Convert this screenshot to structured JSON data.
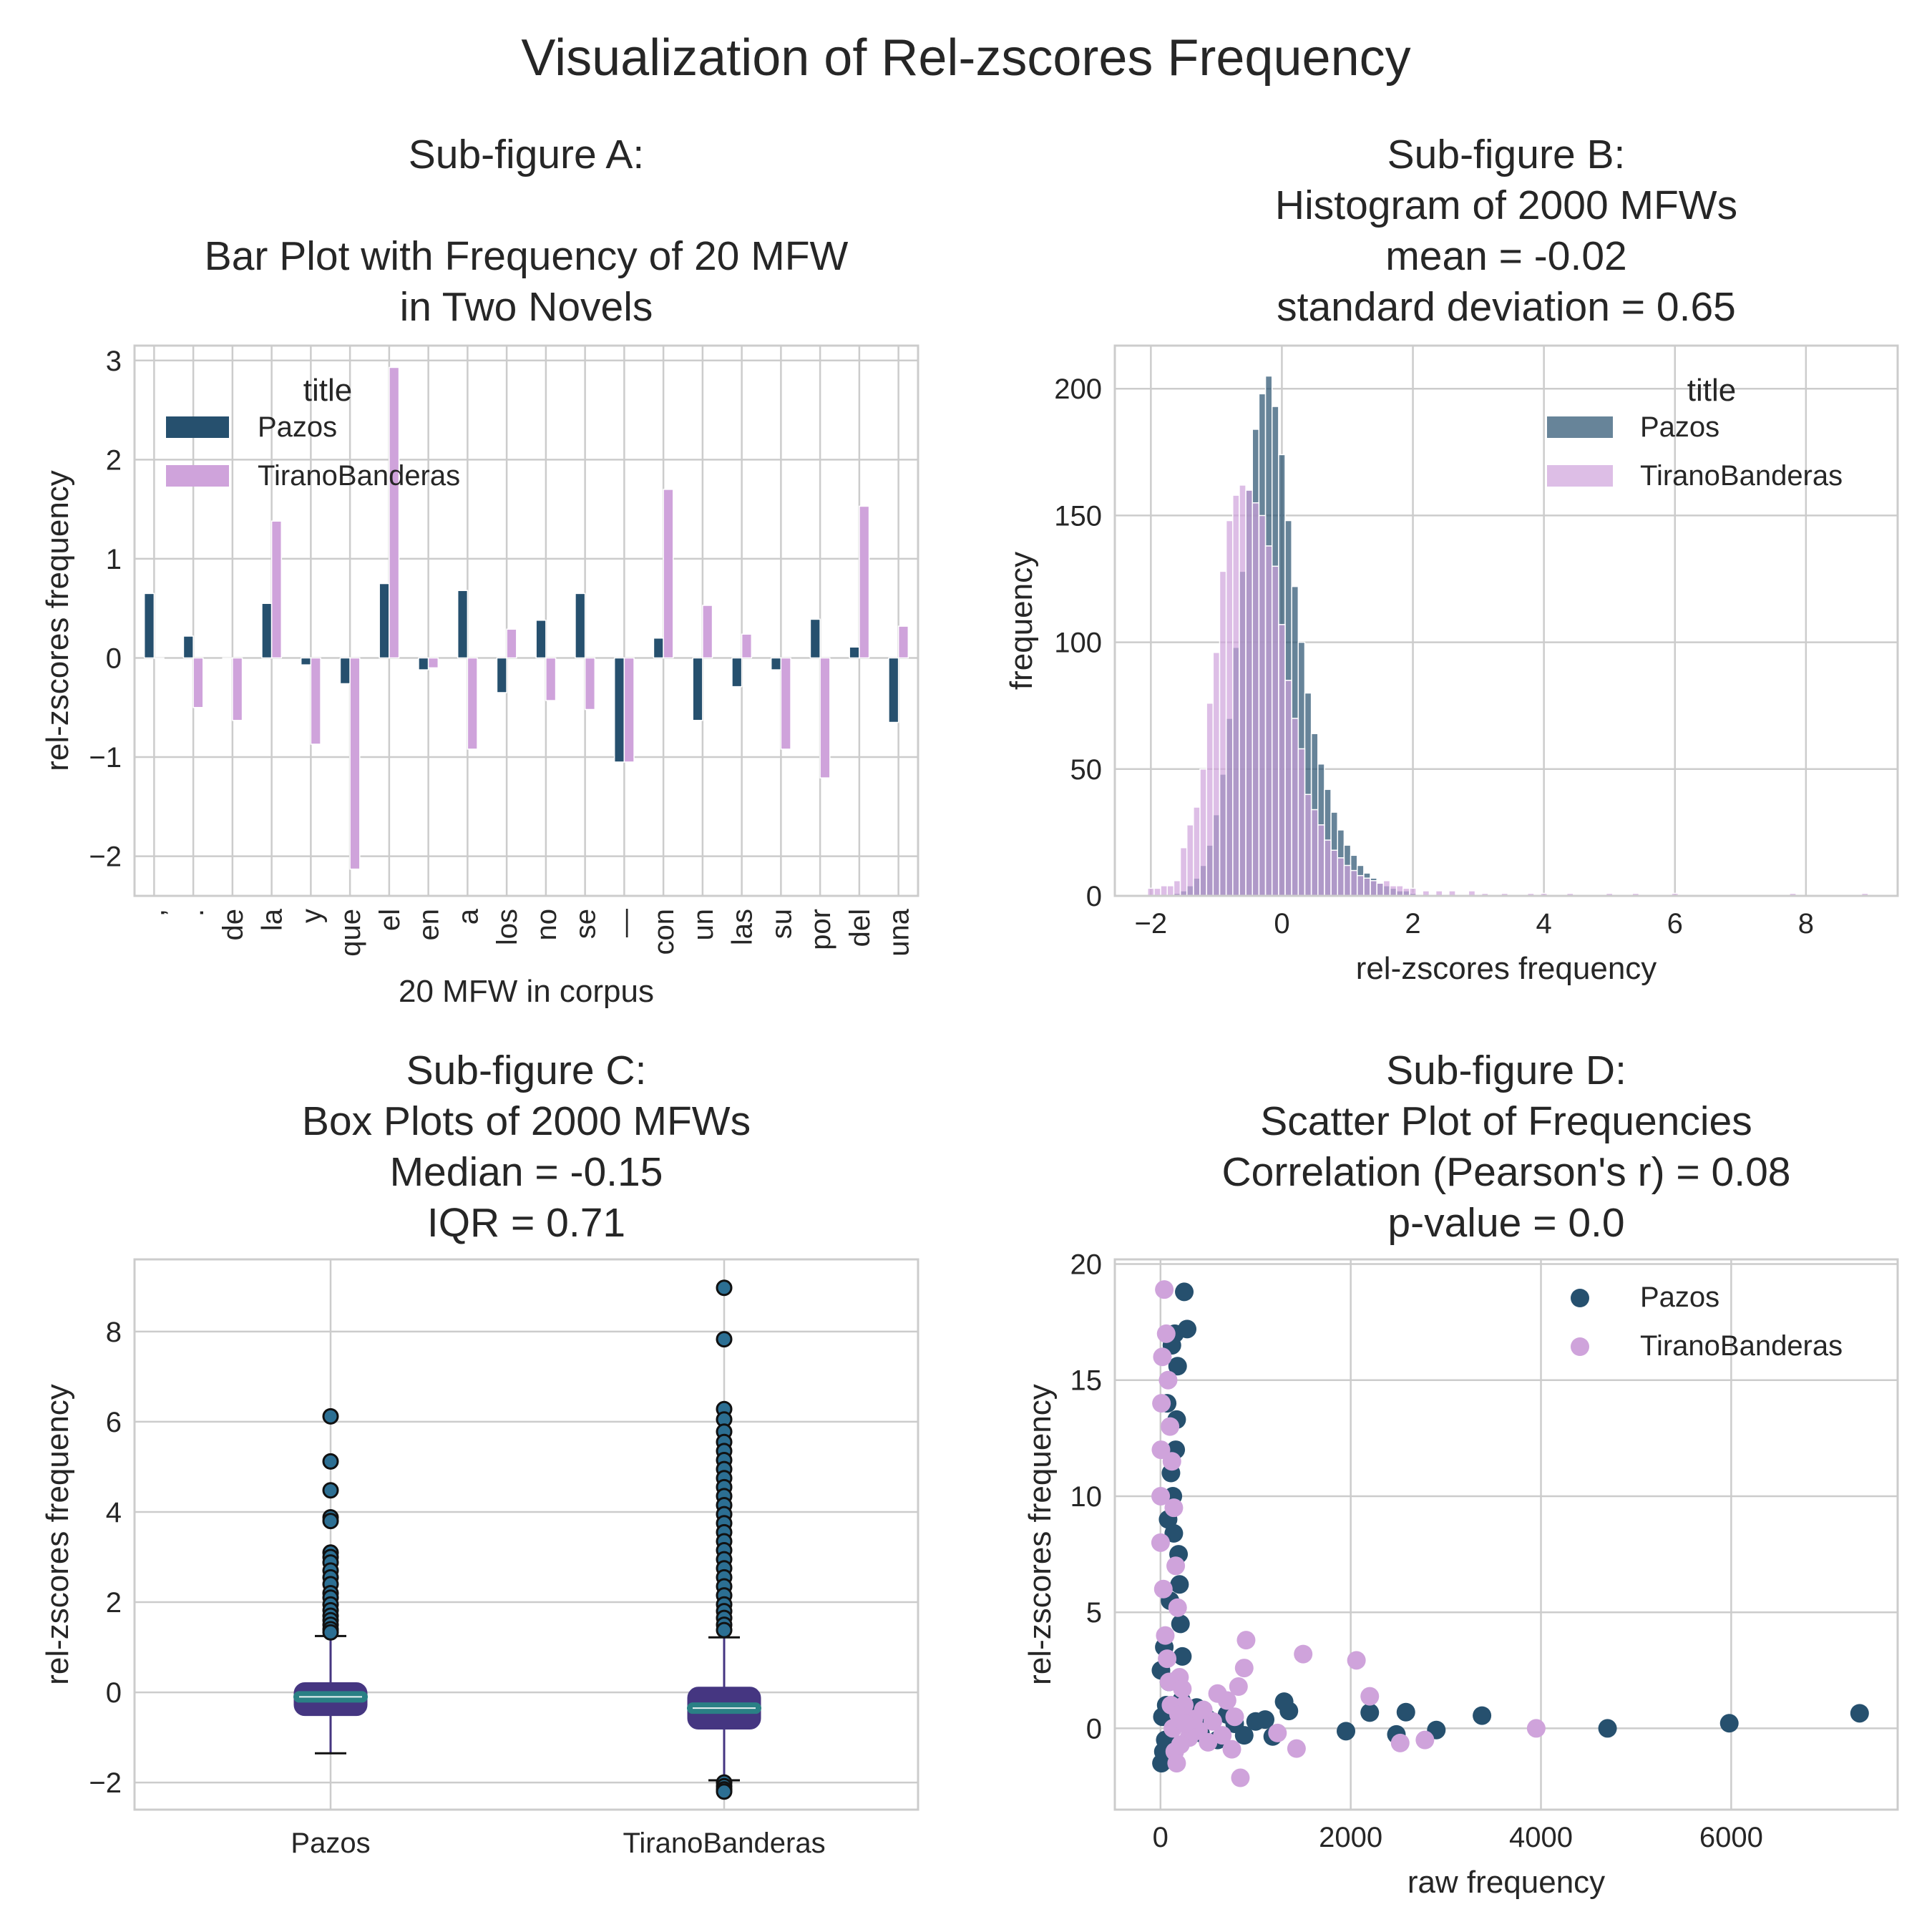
{
  "figure": {
    "title": "Visualization of Rel-zscores Frequency"
  },
  "colors": {
    "pazos": "#26506e",
    "tirano": "#cfa3db",
    "box_face": "#453681",
    "box_median": "#2a8085",
    "grid": "#cccccc"
  },
  "chart_data": [
    {
      "id": "A",
      "type": "bar",
      "title_lines": [
        "Sub-figure A:",
        "",
        "Bar Plot with Frequency of 20 MFW",
        "in Two Novels"
      ],
      "xlabel": "20 MFW in corpus",
      "ylabel": "rel-zscores frequency",
      "ylim": [
        -2.4,
        3.15
      ],
      "yticks": [
        "3",
        "2",
        "1",
        "0",
        "−1",
        "−2"
      ],
      "ytick_values": [
        3,
        2,
        1,
        0,
        -1,
        -2
      ],
      "legend": {
        "title": "title",
        "placement": "upper-left"
      },
      "categories": [
        ",",
        ".",
        "de",
        "la",
        "y",
        "que",
        "el",
        "en",
        "a",
        "los",
        "no",
        "se",
        "—",
        "con",
        "un",
        "las",
        "su",
        "por",
        "del",
        "una"
      ],
      "series": [
        {
          "name": "Pazos",
          "values": [
            0.65,
            0.22,
            0.0,
            0.55,
            -0.07,
            -0.26,
            0.75,
            -0.12,
            0.68,
            -0.35,
            0.38,
            0.65,
            -1.05,
            0.2,
            -0.63,
            -0.29,
            -0.12,
            0.39,
            0.11,
            -0.65
          ]
        },
        {
          "name": "TiranoBanderas",
          "values": [
            0.0,
            -0.5,
            -0.63,
            1.38,
            -0.87,
            -2.13,
            2.93,
            -0.1,
            -0.92,
            0.29,
            -0.43,
            -0.52,
            -1.05,
            1.7,
            0.53,
            0.24,
            -0.92,
            -1.21,
            1.53,
            0.32
          ]
        }
      ]
    },
    {
      "id": "B",
      "type": "histogram",
      "title_lines": [
        "Sub-figure B:",
        "Histogram of 2000 MFWs",
        "mean =  -0.02",
        "standard deviation = 0.65"
      ],
      "xlabel": "rel-zscores frequency",
      "ylabel": "frequency",
      "xlim": [
        -2.55,
        9.4
      ],
      "ylim": [
        0,
        217
      ],
      "xticks": [
        "−2",
        "0",
        "2",
        "4",
        "6",
        "8"
      ],
      "xtick_values": [
        -2,
        0,
        2,
        4,
        6,
        8
      ],
      "yticks": [
        "200",
        "150",
        "100",
        "50",
        "0"
      ],
      "ytick_values": [
        200,
        150,
        100,
        50,
        0
      ],
      "legend": {
        "title": "title",
        "placement": "upper-right"
      },
      "series": [
        {
          "name": "Pazos",
          "x": [
            -1.6,
            -1.5,
            -1.4,
            -1.3,
            -1.2,
            -1.1,
            -1.0,
            -0.9,
            -0.8,
            -0.7,
            -0.6,
            -0.5,
            -0.4,
            -0.3,
            -0.2,
            -0.1,
            0.0,
            0.1,
            0.2,
            0.3,
            0.4,
            0.5,
            0.6,
            0.7,
            0.8,
            0.9,
            1.0,
            1.1,
            1.2,
            1.3,
            1.4,
            1.5,
            1.6,
            1.7,
            1.8,
            1.9,
            2.0
          ],
          "values": [
            1,
            2,
            4,
            7,
            12,
            20,
            32,
            48,
            70,
            98,
            128,
            160,
            184,
            198,
            205,
            193,
            174,
            148,
            122,
            100,
            80,
            64,
            52,
            42,
            33,
            26,
            20,
            16,
            12,
            9,
            7,
            5,
            4,
            3,
            2,
            2,
            1
          ]
        },
        {
          "name": "TiranoBanderas",
          "x": [
            -2.0,
            -1.9,
            -1.8,
            -1.7,
            -1.6,
            -1.5,
            -1.4,
            -1.3,
            -1.2,
            -1.1,
            -1.0,
            -0.9,
            -0.8,
            -0.7,
            -0.6,
            -0.5,
            -0.4,
            -0.3,
            -0.2,
            -0.1,
            0.0,
            0.1,
            0.2,
            0.3,
            0.4,
            0.5,
            0.6,
            0.7,
            0.8,
            0.9,
            1.0,
            1.1,
            1.2,
            1.3,
            1.4,
            1.5,
            1.6,
            1.7,
            1.8,
            1.9,
            2.0,
            2.2,
            2.4,
            2.6,
            2.9,
            3.1,
            3.4,
            3.8,
            4.0,
            4.4,
            5.0,
            5.4,
            6.0,
            7.8,
            8.9
          ],
          "values": [
            3,
            3,
            4,
            4,
            6,
            19,
            28,
            35,
            50,
            76,
            96,
            128,
            148,
            158,
            162,
            160,
            155,
            150,
            138,
            130,
            107,
            85,
            70,
            58,
            40,
            34,
            28,
            22,
            18,
            15,
            12,
            10,
            8,
            7,
            6,
            5,
            6,
            4,
            4,
            3,
            3,
            2,
            2,
            2,
            2,
            1,
            1,
            1,
            1,
            1,
            1,
            1,
            1,
            1,
            1
          ]
        }
      ]
    },
    {
      "id": "C",
      "type": "box",
      "title_lines": [
        "Sub-figure C:",
        "Box Plots of 2000 MFWs",
        "Median =  -0.15",
        "IQR = 0.71"
      ],
      "ylabel": "rel-zscores frequency",
      "ylim": [
        -2.6,
        9.6
      ],
      "yticks": [
        "8",
        "6",
        "4",
        "2",
        "0",
        "−2"
      ],
      "ytick_values": [
        8,
        6,
        4,
        2,
        0,
        -2
      ],
      "categories": [
        "Pazos",
        "TiranoBanderas"
      ],
      "boxes": [
        {
          "q1": -0.5,
          "median": -0.1,
          "q3": 0.2,
          "whisker_low": -1.35,
          "whisker_high": 1.25,
          "outliers": [
            6.12,
            5.12,
            4.48,
            3.88,
            3.8,
            3.1,
            3.0,
            2.88,
            2.7,
            2.55,
            2.4,
            2.2,
            2.1,
            1.95,
            1.82,
            1.7,
            1.6,
            1.5,
            1.4,
            1.33
          ]
        },
        {
          "q1": -0.8,
          "median": -0.35,
          "q3": 0.1,
          "whisker_low": -1.95,
          "whisker_high": 1.22,
          "outliers": [
            8.97,
            7.83,
            6.28,
            6.05,
            5.78,
            5.55,
            5.35,
            5.15,
            4.95,
            4.75,
            4.55,
            4.35,
            4.15,
            3.95,
            3.75,
            3.55,
            3.35,
            3.15,
            2.95,
            2.75,
            2.55,
            2.35,
            2.15,
            1.95,
            1.8,
            1.65,
            1.5,
            1.38,
            -2.0,
            -2.08,
            -2.15,
            -2.2
          ]
        }
      ]
    },
    {
      "id": "D",
      "type": "scatter",
      "title_lines": [
        "Sub-figure D:",
        "Scatter Plot of Frequencies",
        "Correlation (Pearson's r) =  0.08",
        "p-value = 0.0"
      ],
      "xlabel": "raw frequency",
      "ylabel": "rel-zscores frequency",
      "xlim": [
        -480,
        7750
      ],
      "ylim": [
        -3.5,
        20.2
      ],
      "xticks": [
        "0",
        "2000",
        "4000",
        "6000"
      ],
      "xtick_values": [
        0,
        2000,
        4000,
        6000
      ],
      "yticks": [
        "20",
        "15",
        "10",
        "5",
        "0"
      ],
      "ytick_values": [
        20,
        15,
        10,
        5,
        0
      ],
      "legend": {
        "placement": "upper-right"
      },
      "series": [
        {
          "name": "Pazos",
          "x": [
            7350,
            5980,
            4700,
            3380,
            2900,
            2580,
            2480,
            2200,
            1950,
            1350,
            1300,
            1180,
            1100,
            1000,
            880,
            780,
            700,
            600,
            500,
            420,
            380,
            330,
            280,
            250,
            230,
            210,
            200,
            190,
            180,
            170,
            160,
            150,
            140,
            130,
            120,
            110,
            100,
            90,
            80,
            70,
            60,
            50,
            40,
            30,
            20,
            10,
            5,
            400,
            220,
            160,
            240
          ],
          "y": [
            0.65,
            0.22,
            0.0,
            0.55,
            -0.07,
            0.7,
            -0.26,
            0.68,
            -0.12,
            0.75,
            1.15,
            -0.35,
            0.38,
            0.3,
            -0.3,
            0.2,
            0.6,
            -0.5,
            0.4,
            -0.2,
            0.9,
            0.6,
            17.2,
            18.8,
            3.1,
            4.5,
            6.2,
            7.5,
            15.6,
            13.3,
            12.0,
            17.0,
            8.4,
            10.0,
            16.5,
            11.0,
            5.5,
            2.0,
            9.0,
            14.0,
            1.0,
            -0.5,
            3.5,
            -1.0,
            0.5,
            -1.5,
            2.5,
            0.1,
            1.2,
            -0.8,
            0.3
          ]
        },
        {
          "name": "TiranoBanderas",
          "x": [
            3950,
            2780,
            2520,
            2200,
            2060,
            1500,
            1430,
            1230,
            900,
            880,
            840,
            820,
            780,
            750,
            700,
            650,
            600,
            550,
            500,
            450,
            400,
            350,
            300,
            250,
            200,
            180,
            160,
            140,
            120,
            100,
            80,
            60,
            40,
            20,
            10,
            5,
            2,
            1,
            30,
            50,
            70,
            90,
            110,
            130,
            150,
            170,
            190,
            210,
            230,
            260
          ],
          "y": [
            0.0,
            -0.5,
            -0.63,
            1.38,
            2.93,
            3.2,
            -0.87,
            -0.2,
            3.8,
            2.6,
            -2.13,
            1.8,
            0.5,
            -0.9,
            1.2,
            -0.3,
            1.5,
            0.3,
            -0.6,
            0.8,
            -0.1,
            0.4,
            -0.4,
            1.0,
            2.2,
            5.2,
            7.0,
            9.5,
            11.5,
            13.0,
            15.0,
            17.0,
            18.9,
            16.0,
            14.0,
            12.0,
            10.0,
            8.0,
            6.0,
            4.0,
            3.0,
            2.0,
            1.0,
            0.0,
            -1.0,
            -1.5,
            0.6,
            -0.7,
            1.7,
            0.2
          ]
        }
      ]
    }
  ]
}
